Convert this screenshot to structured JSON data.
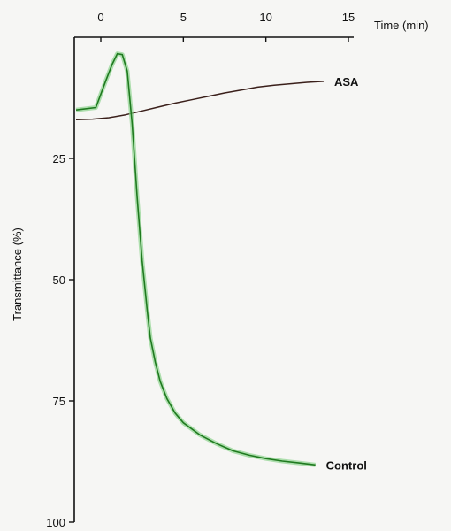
{
  "chart_data": {
    "type": "line",
    "title": "",
    "xlabel": "Time (min)",
    "ylabel": "Transmittance (%)",
    "xlim": [
      -1.5,
      15
    ],
    "ylim": [
      100,
      0
    ],
    "x_ticks": [
      0,
      5,
      10,
      15
    ],
    "x_tick_labels": [
      "0",
      "5",
      "10",
      "15"
    ],
    "y_ticks": [
      25,
      50,
      75,
      100
    ],
    "y_tick_labels": [
      "25",
      "50",
      "75",
      "100"
    ],
    "grid": false,
    "legend": "none (series labelled at line ends)",
    "series": [
      {
        "name": "ASA",
        "color": "#3a1f1a",
        "x": [
          -1.5,
          -0.5,
          0.5,
          1.5,
          2.5,
          3.5,
          4.5,
          5.5,
          6.5,
          7.5,
          8.5,
          9.5,
          10.5,
          11.5,
          12.5,
          13.5
        ],
        "y": [
          17.0,
          16.9,
          16.6,
          16.0,
          15.2,
          14.4,
          13.6,
          12.9,
          12.2,
          11.5,
          10.9,
          10.3,
          9.9,
          9.6,
          9.3,
          9.1
        ]
      },
      {
        "name": "Control",
        "color": "#1f7a1f",
        "x": [
          -1.5,
          -0.3,
          0.3,
          0.7,
          1.0,
          1.3,
          1.6,
          1.9,
          2.2,
          2.5,
          2.8,
          3.0,
          3.3,
          3.6,
          4.0,
          4.5,
          5.0,
          6.0,
          7.0,
          8.0,
          9.0,
          10.0,
          11.0,
          12.0,
          13.0
        ],
        "y": [
          15.0,
          14.5,
          9.0,
          5.5,
          3.4,
          3.6,
          7.0,
          18.0,
          33.0,
          46.0,
          56.0,
          62.0,
          67.0,
          71.0,
          74.5,
          77.5,
          79.5,
          82.0,
          83.8,
          85.3,
          86.2,
          86.9,
          87.4,
          87.8,
          88.2
        ]
      }
    ]
  }
}
